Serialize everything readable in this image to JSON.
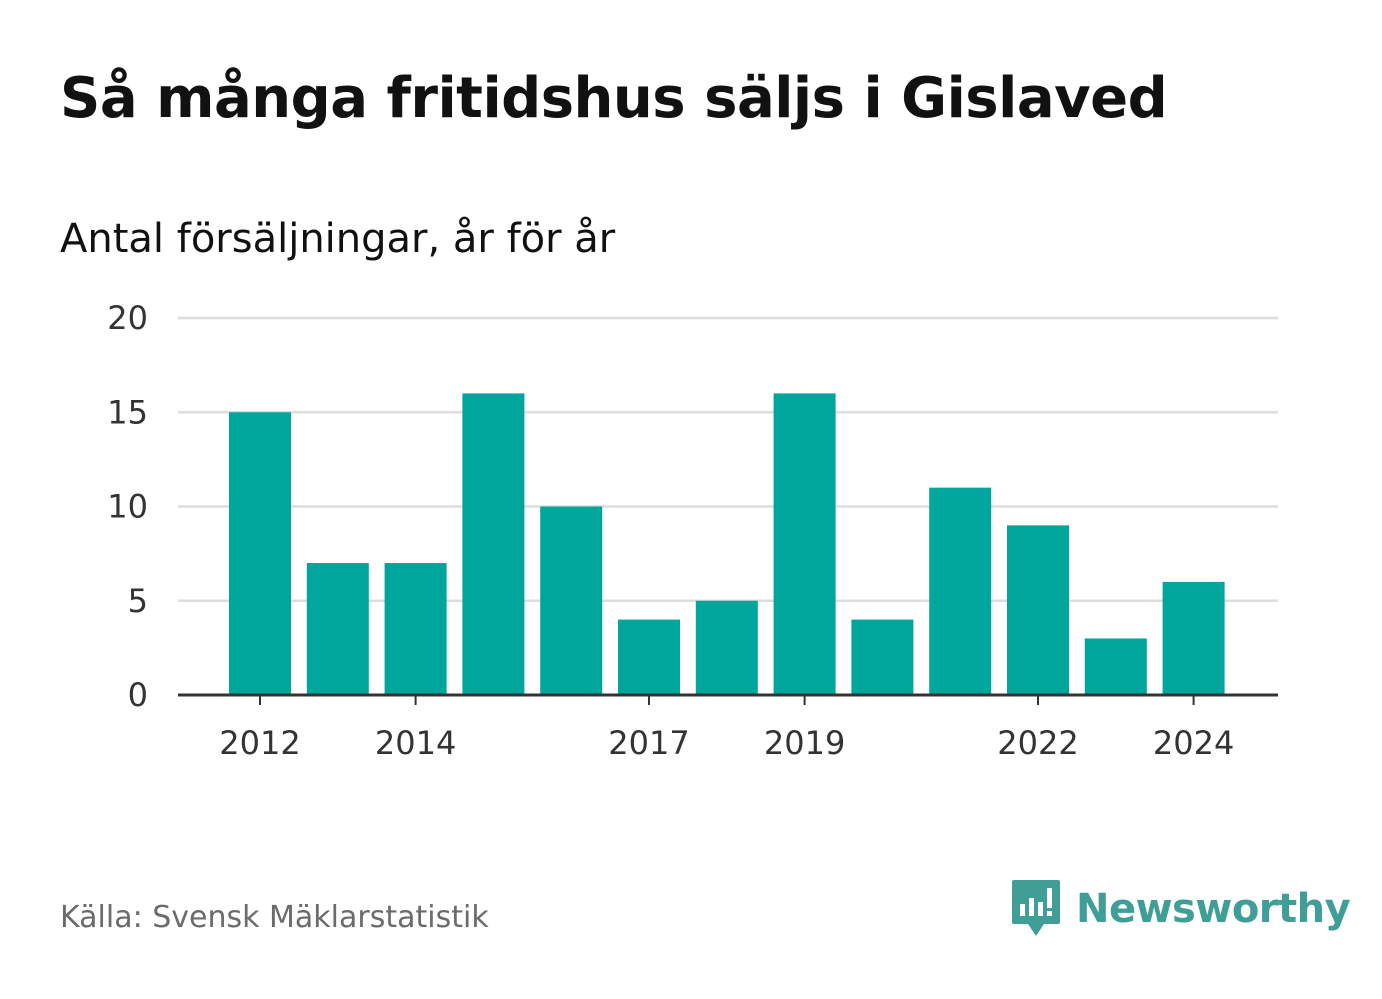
{
  "title": "Så många fritidshus säljs i Gislaved",
  "subtitle": "Antal försäljningar, år för år",
  "source": "Källa: Svensk Mäklarstatistik",
  "brand": {
    "name": "Newsworthy",
    "icon": "newsworthy-logo-icon",
    "color": "#3f9e96"
  },
  "colors": {
    "bar": "#00a69c",
    "grid": "#dddddd",
    "axis": "#333333"
  },
  "chart_data": {
    "type": "bar",
    "title": "Så många fritidshus säljs i Gislaved",
    "subtitle": "Antal försäljningar, år för år",
    "xlabel": "",
    "ylabel": "",
    "categories": [
      "2012",
      "2013",
      "2014",
      "2015",
      "2016",
      "2017",
      "2018",
      "2019",
      "2020",
      "2021",
      "2022",
      "2023",
      "2024"
    ],
    "values": [
      15,
      7,
      7,
      16,
      10,
      4,
      5,
      16,
      4,
      11,
      9,
      3,
      6
    ],
    "x_tick_labels": [
      "2012",
      "2014",
      "2017",
      "2019",
      "2022",
      "2024"
    ],
    "y_ticks": [
      0,
      5,
      10,
      15,
      20
    ],
    "ylim": [
      0,
      20
    ],
    "grid": true,
    "legend": "none"
  }
}
